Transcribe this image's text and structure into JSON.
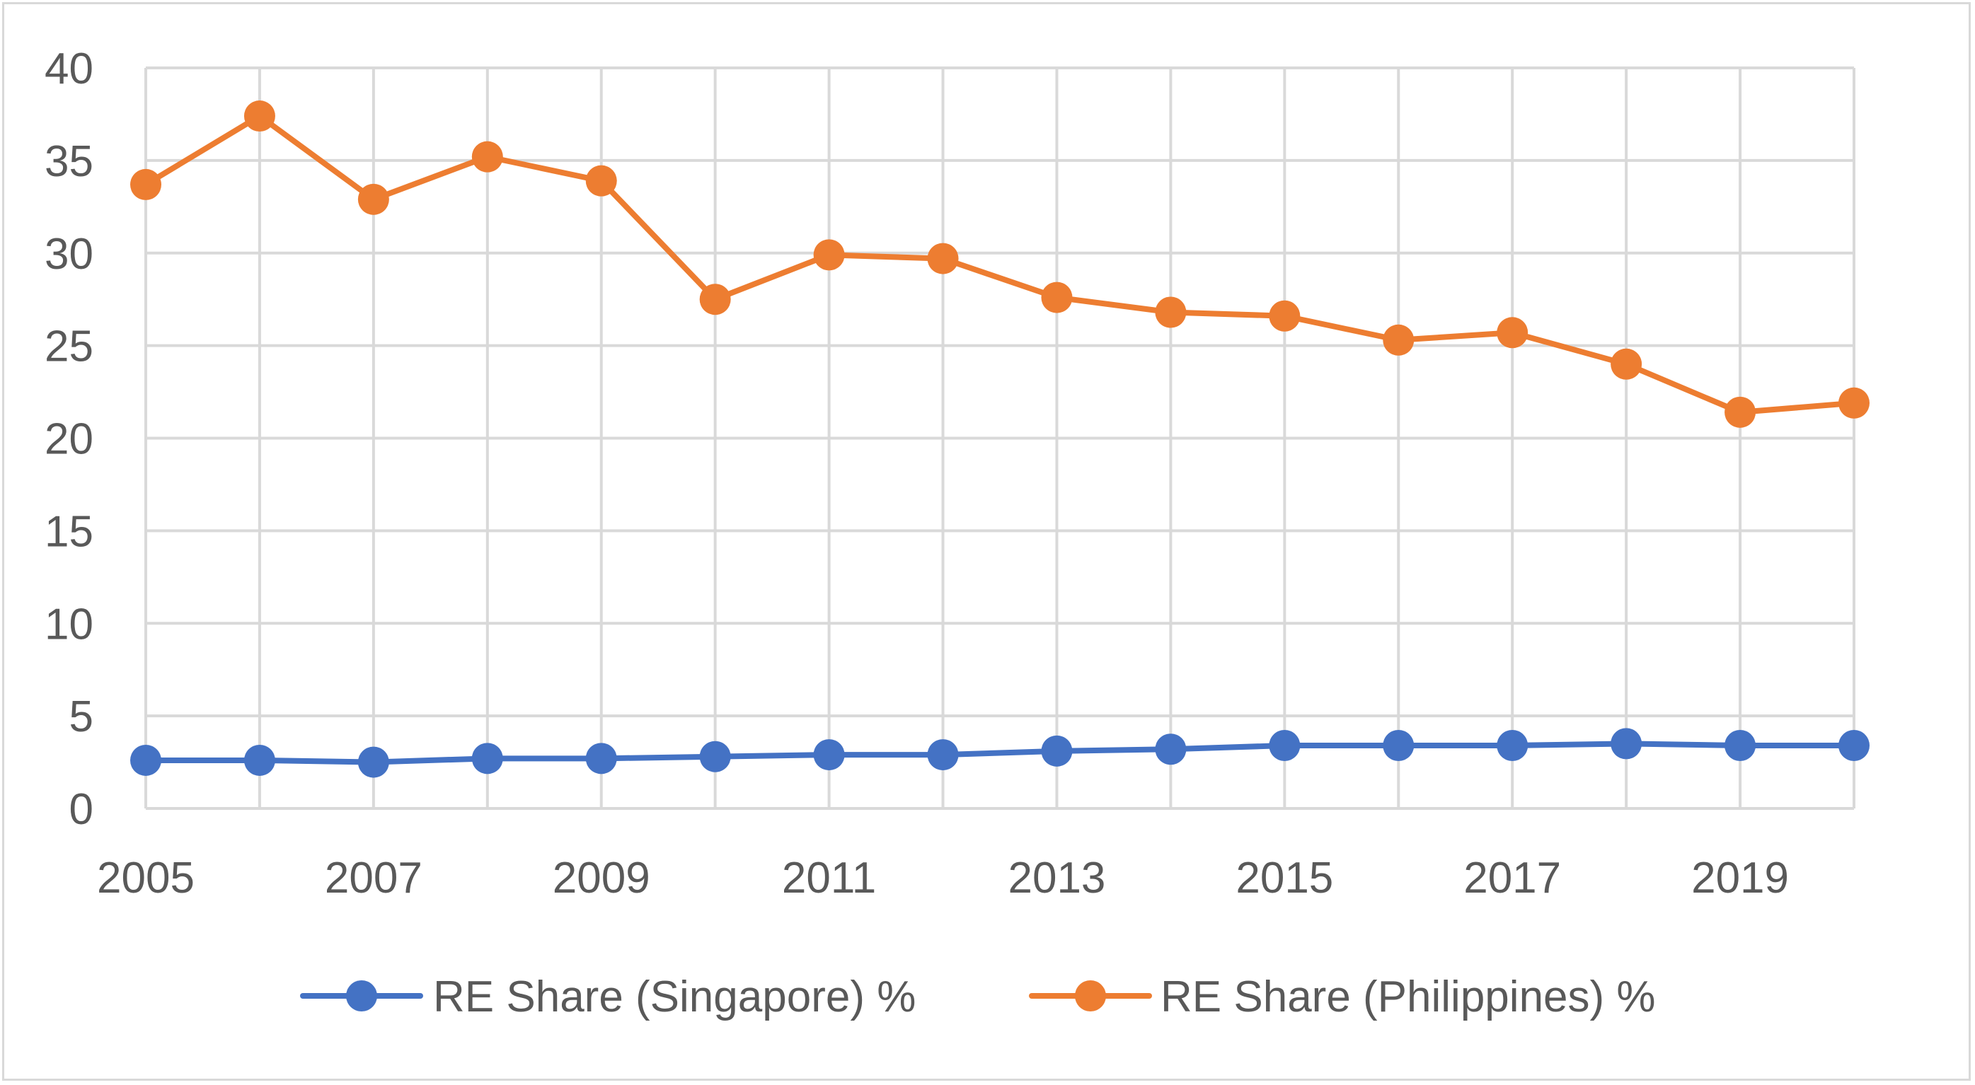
{
  "chart_data": {
    "type": "line",
    "title": "",
    "xlabel": "",
    "ylabel": "",
    "x": [
      2005,
      2006,
      2007,
      2008,
      2009,
      2010,
      2011,
      2012,
      2013,
      2014,
      2015,
      2016,
      2017,
      2018,
      2019,
      2020
    ],
    "x_tick_labels": [
      "2005",
      "2007",
      "2009",
      "2011",
      "2013",
      "2015",
      "2017",
      "2019"
    ],
    "y_tick_labels": [
      "0",
      "5",
      "10",
      "15",
      "20",
      "25",
      "30",
      "35",
      "40"
    ],
    "xlim": [
      2005,
      2020
    ],
    "ylim": [
      0,
      40
    ],
    "y_ticks": [
      0,
      5,
      10,
      15,
      20,
      25,
      30,
      35,
      40
    ],
    "grid": true,
    "legend_position": "bottom",
    "series": [
      {
        "name": "RE Share (Singapore) %",
        "color": "#4472c4",
        "values": [
          2.6,
          2.6,
          2.5,
          2.7,
          2.7,
          2.8,
          2.9,
          2.9,
          3.1,
          3.2,
          3.4,
          3.4,
          3.4,
          3.5,
          3.4,
          3.4
        ]
      },
      {
        "name": "RE Share (Philippines) %",
        "color": "#ed7d31",
        "values": [
          33.7,
          37.4,
          32.9,
          35.2,
          33.9,
          27.5,
          29.9,
          29.7,
          27.6,
          26.8,
          26.6,
          25.3,
          25.7,
          24.0,
          21.4,
          21.9
        ]
      }
    ]
  }
}
